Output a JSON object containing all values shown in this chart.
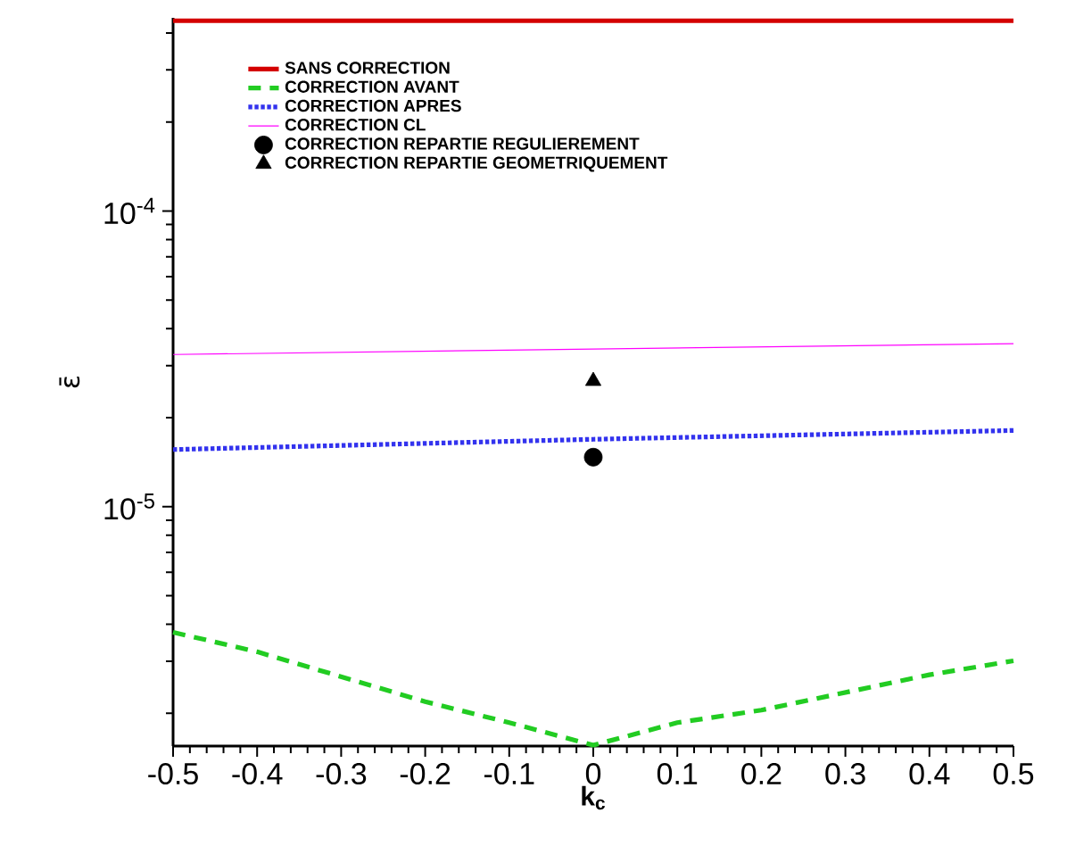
{
  "chart_data": {
    "type": "line",
    "xlabel": "k$_{c}$",
    "ylabel": "ε̄",
    "log": "y",
    "legend": "top",
    "grid": false,
    "xlim": [
      -0.5,
      0.5
    ],
    "xticks": [
      -0.5,
      -0.4,
      -0.3,
      -0.2,
      -0.1,
      0,
      0.1,
      0.2,
      0.3,
      0.4,
      0.5
    ],
    "ylim": [
      1.55e-06,
      0.00045
    ],
    "yticks": [
      {
        "value": 1e-05,
        "label": "10$^{-5}$"
      },
      {
        "value": 0.0001,
        "label": "10$^{-4}$"
      }
    ],
    "series": [
      {
        "name": "SANS CORRECTION",
        "type": "line",
        "line_style": "solid",
        "color": "#d40000",
        "x": [
          -0.5,
          0.5
        ],
        "values": [
          0.00044,
          0.00044
        ]
      },
      {
        "name": "CORRECTION AVANT",
        "type": "line",
        "line_style": "dashed",
        "color": "#22cc22",
        "x": [
          -0.5,
          -0.4,
          -0.2,
          -0.1,
          0,
          0.1,
          0.2,
          0.4,
          0.5
        ],
        "values": [
          3.76e-06,
          3.23e-06,
          2.19e-06,
          1.86e-06,
          1.56e-06,
          1.86e-06,
          2.05e-06,
          2.7e-06,
          3.01e-06
        ]
      },
      {
        "name": "CORRECTION APRES",
        "type": "line",
        "line_style": "dotted",
        "color": "#3333ee",
        "x": [
          -0.5,
          0,
          0.5
        ],
        "values": [
          1.56e-05,
          1.69e-05,
          1.81e-05
        ]
      },
      {
        "name": "CORRECTION CL",
        "type": "line",
        "line_style": "solid",
        "color": "#ff00ff",
        "x": [
          -0.5,
          0.5
        ],
        "values": [
          3.27e-05,
          3.56e-05
        ]
      },
      {
        "name": "CORRECTION REPARTIE REGULIEREMENT",
        "type": "scatter",
        "marker": "circle",
        "color": "#000000",
        "x": [
          0
        ],
        "values": [
          1.47e-05
        ]
      },
      {
        "name": "CORRECTION REPARTIE GEOMETRIQUEMENT",
        "type": "scatter",
        "marker": "triangle",
        "color": "#000000",
        "x": [
          0
        ],
        "values": [
          2.66e-05
        ]
      }
    ]
  }
}
